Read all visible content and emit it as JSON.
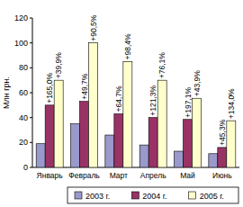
{
  "chart_data": {
    "type": "bar",
    "y_label": "Млн грн.",
    "categories": [
      "Январь",
      "Февраль",
      "Март",
      "Апрель",
      "Май",
      "Июнь"
    ],
    "series": [
      {
        "name": "2003 г.",
        "color": "#9999cc",
        "values": [
          19,
          35,
          26,
          18,
          13,
          11
        ]
      },
      {
        "name": "2004 г.",
        "color": "#993366",
        "values": [
          50,
          53,
          43,
          40,
          38.5,
          16
        ],
        "annotations": [
          "+165,0%",
          "+49,7%",
          "+64,7%",
          "+121,3%",
          "+197,1%",
          "+45,3%"
        ]
      },
      {
        "name": "2005 г.",
        "color": "#ffffcc",
        "values": [
          70,
          100,
          85,
          70,
          55.5,
          37.5
        ],
        "annotations": [
          "+39,9%",
          "+90,5%",
          "+98,4%",
          "+76,1%",
          "+43,9%",
          "+134,0%"
        ]
      }
    ],
    "ylim": [
      0,
      120
    ],
    "yticks": [
      0,
      20,
      40,
      60,
      80,
      100,
      120
    ],
    "grid": false,
    "legend": "bottom"
  }
}
